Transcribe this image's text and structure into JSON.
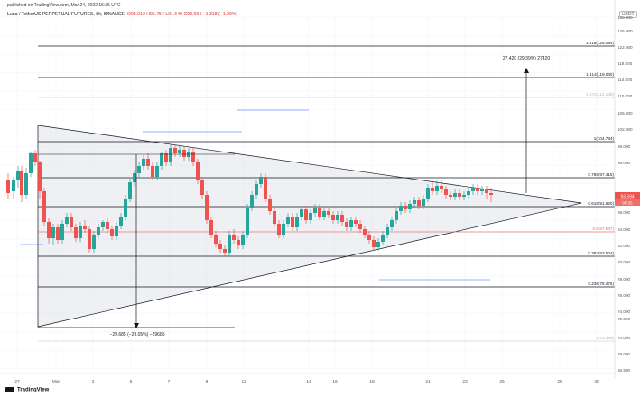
{
  "header": {
    "published": "published on TradingView.com, Mar 24, 2022 15:35 UTC",
    "symbol": "Luna / TetherUS PERPETUAL FUTURES, 8h, BINANCE",
    "ohlc": "O95.012  H95.754  L91.640  C93.694  −1.318 (−1.39%)"
  },
  "currency_badge": "USDT",
  "footer": {
    "brand": "TradingView"
  },
  "price_axis": {
    "labels": [
      "130.000",
      "126.000",
      "122.000",
      "118.000",
      "114.000",
      "110.000",
      "106.000",
      "102.000",
      "98.000",
      "96.000",
      "92.000",
      "88.000",
      "84.000",
      "82.000",
      "80.000",
      "78.000",
      "76.000",
      "74.000",
      "72.000",
      "70.000",
      "69.000",
      "66.900"
    ],
    "current_price": "93.694",
    "current_tag_2": "95.35"
  },
  "time_axis": {
    "labels": [
      "27",
      "Mar",
      "3",
      "5",
      "7",
      "9",
      "11",
      "14",
      "16",
      "18",
      "21",
      "23",
      "25",
      "28",
      "30"
    ]
  },
  "fib_levels": [
    {
      "label": "1.618(126.084)",
      "value": 126.084
    },
    {
      "label": "1.414(119.040)",
      "value": 119.04
    },
    {
      "label": "1.272(114.108)",
      "value": 114.108
    },
    {
      "label": "1(104.784)",
      "value": 104.784
    },
    {
      "label": "0.786(97.415)",
      "value": 97.415
    },
    {
      "label": "0.618(91.620)",
      "value": 91.62
    },
    {
      "label": "0.5(87.567)",
      "value": 87.567
    },
    {
      "label": "0.382(83.504)",
      "value": 83.504
    },
    {
      "label": "0.236(78.476)",
      "value": 78.476
    },
    {
      "label": "0(70.356)",
      "value": 70.356
    }
  ],
  "annotations": {
    "measure_up": "27.420 (29.39%) 27420",
    "measure_down": "−29.685 (−29.05%) −29685"
  },
  "colors": {
    "up": "#26a69a",
    "down": "#ef5350",
    "grid": "#f0f3fa",
    "line": "#131722",
    "fib_red": "#e57373"
  }
}
